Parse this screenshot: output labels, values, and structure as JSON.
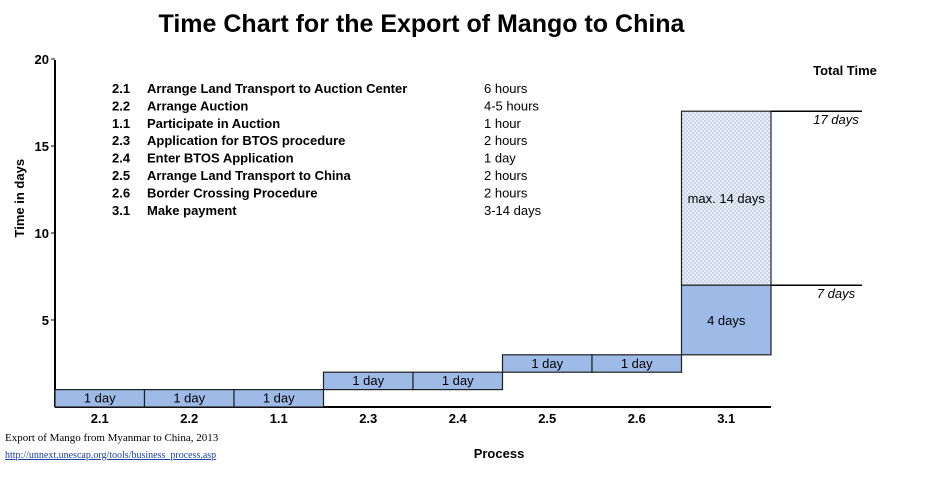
{
  "title": "Time Chart for the Export of Mango to China",
  "source": "Export of Mango from Myanmar to China, 2013",
  "link": "http://unnext.unescap.org/tools/business_process.asp",
  "chart_data": {
    "type": "bar",
    "title": "Time Chart for the Export of Mango to China",
    "xlabel": "Process",
    "ylabel": "Time in days",
    "ylim": [
      0,
      20
    ],
    "yticks": [
      5,
      10,
      15,
      20
    ],
    "categories": [
      "2.1",
      "2.2",
      "1.1",
      "2.3",
      "2.4",
      "2.5",
      "2.6",
      "3.1"
    ],
    "steps": [
      {
        "code": "2.1",
        "start": 0,
        "end": 1,
        "label": "1 day"
      },
      {
        "code": "2.2",
        "start": 0,
        "end": 1,
        "label": "1 day"
      },
      {
        "code": "1.1",
        "start": 0,
        "end": 1,
        "label": "1 day"
      },
      {
        "code": "2.3",
        "start": 1,
        "end": 2,
        "label": "1 day"
      },
      {
        "code": "2.4",
        "start": 1,
        "end": 2,
        "label": "1 day"
      },
      {
        "code": "2.5",
        "start": 2,
        "end": 3,
        "label": "1 day"
      },
      {
        "code": "2.6",
        "start": 2,
        "end": 3,
        "label": "1 day"
      },
      {
        "code": "3.1",
        "start": 3,
        "end": 7,
        "label": "4 days"
      }
    ],
    "extension": {
      "code": "3.1",
      "start": 7,
      "end": 17,
      "label": "max. 14 days"
    },
    "total_time_label": "Total Time",
    "total_marks": [
      {
        "value": 17,
        "label": "17 days"
      },
      {
        "value": 7,
        "label": "7 days"
      }
    ],
    "legend": [
      {
        "code": "2.1",
        "name": "Arrange Land Transport to Auction Center",
        "duration": "6 hours"
      },
      {
        "code": "2.2",
        "name": "Arrange Auction",
        "duration": "4-5 hours"
      },
      {
        "code": "1.1",
        "name": "Participate in Auction",
        "duration": "1 hour"
      },
      {
        "code": "2.3",
        "name": "Application for BTOS procedure",
        "duration": "2 hours"
      },
      {
        "code": "2.4",
        "name": "Enter BTOS Application",
        "duration": "1 day"
      },
      {
        "code": "2.5",
        "name": "Arrange Land Transport to China",
        "duration": "2 hours"
      },
      {
        "code": "2.6",
        "name": "Border Crossing Procedure",
        "duration": "2 hours"
      },
      {
        "code": "3.1",
        "name": "Make payment",
        "duration": "3-14 days"
      }
    ],
    "colors": {
      "bar": "#9dbbe6",
      "extension": "#dfe8f5",
      "border": "#1f1f1f"
    }
  }
}
